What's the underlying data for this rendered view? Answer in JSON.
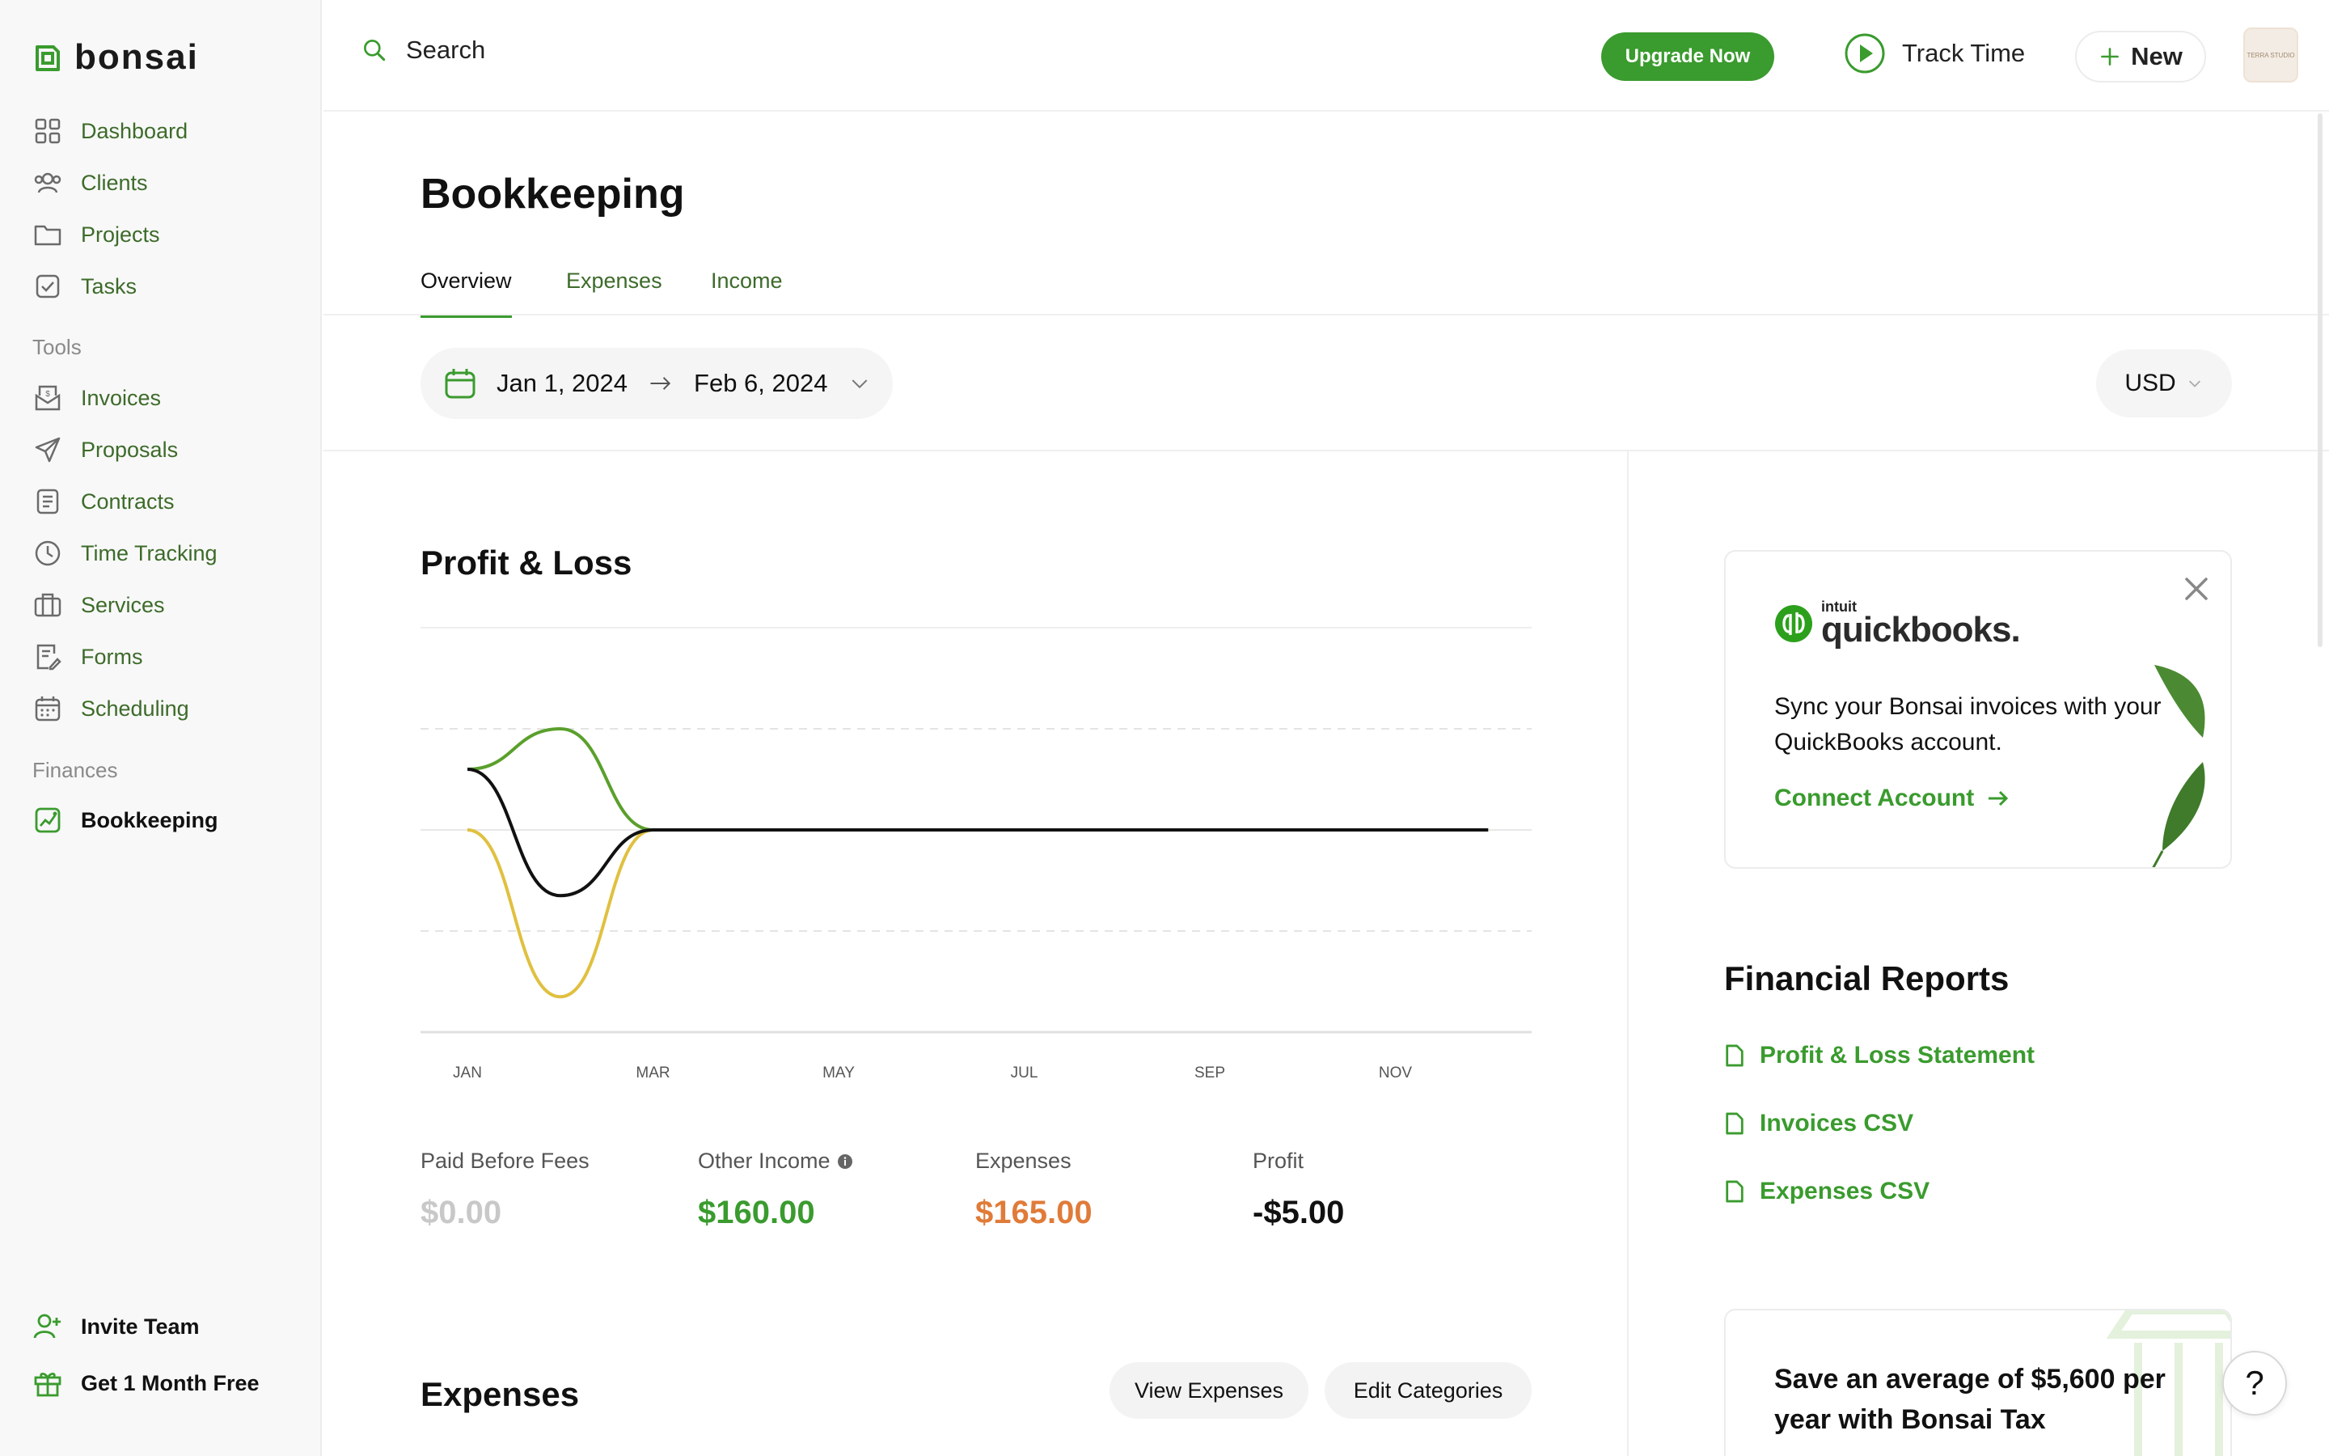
{
  "brand": {
    "name": "bonsai",
    "accent": "#3a9b2e"
  },
  "sidebar": {
    "main_items": [
      {
        "label": "Dashboard",
        "icon": "grid-icon"
      },
      {
        "label": "Clients",
        "icon": "users-icon"
      },
      {
        "label": "Projects",
        "icon": "folder-icon"
      },
      {
        "label": "Tasks",
        "icon": "checkbox-icon"
      }
    ],
    "tools_heading": "Tools",
    "tools_items": [
      {
        "label": "Invoices",
        "icon": "invoice-icon"
      },
      {
        "label": "Proposals",
        "icon": "send-icon"
      },
      {
        "label": "Contracts",
        "icon": "document-icon"
      },
      {
        "label": "Time Tracking",
        "icon": "clock-icon"
      },
      {
        "label": "Services",
        "icon": "briefcase-icon"
      },
      {
        "label": "Forms",
        "icon": "form-icon"
      },
      {
        "label": "Scheduling",
        "icon": "calendar-icon"
      }
    ],
    "finances_heading": "Finances",
    "finances_items": [
      {
        "label": "Bookkeeping",
        "icon": "chart-icon",
        "active": true
      }
    ],
    "bottom_items": [
      {
        "label": "Invite Team",
        "icon": "add-user-icon"
      },
      {
        "label": "Get 1 Month Free",
        "icon": "gift-icon"
      }
    ]
  },
  "topbar": {
    "search_label": "Search",
    "upgrade_label": "Upgrade Now",
    "track_time_label": "Track Time",
    "new_label": "New",
    "avatar_text": "TERRA STUDIO"
  },
  "page": {
    "title": "Bookkeeping",
    "tabs": [
      {
        "label": "Overview",
        "active": true
      },
      {
        "label": "Expenses",
        "active": false
      },
      {
        "label": "Income",
        "active": false
      }
    ],
    "date_from": "Jan 1, 2024",
    "date_to": "Feb 6, 2024",
    "currency": "USD"
  },
  "profit_loss": {
    "title": "Profit & Loss",
    "stats": [
      {
        "label": "Paid Before Fees",
        "value": "$0.00",
        "color": "#c8c8c8",
        "info": false
      },
      {
        "label": "Other Income",
        "value": "$160.00",
        "color": "#3a9b2e",
        "info": true
      },
      {
        "label": "Expenses",
        "value": "$165.00",
        "color": "#e07b39",
        "info": false
      },
      {
        "label": "Profit",
        "value": "-$5.00",
        "color": "#111111",
        "info": false
      }
    ]
  },
  "chart_data": {
    "type": "line",
    "x": [
      "JAN",
      "FEB",
      "MAR",
      "APR",
      "MAY",
      "JUN",
      "JUL",
      "AUG",
      "SEP",
      "OCT",
      "NOV",
      "DEC"
    ],
    "tick_labels": [
      "JAN",
      "MAR",
      "MAY",
      "JUL",
      "SEP",
      "NOV"
    ],
    "series": [
      {
        "values": [
          60,
          100,
          0,
          0,
          0,
          0,
          0,
          0,
          0,
          0,
          0,
          0
        ],
        "color": "#5aa02c"
      },
      {
        "values": [
          0,
          -165,
          0,
          0,
          0,
          0,
          0,
          0,
          0,
          0,
          0,
          0
        ],
        "color": "#e0c040"
      },
      {
        "values": [
          60,
          -65,
          0,
          0,
          0,
          0,
          0,
          0,
          0,
          0,
          0,
          0
        ],
        "color": "#111111"
      }
    ],
    "ylim": [
      -200,
      200
    ],
    "grid": true,
    "legend": "none"
  },
  "expenses_section": {
    "title": "Expenses",
    "view_label": "View Expenses",
    "edit_label": "Edit Categories"
  },
  "quickbooks": {
    "intuit_label": "intuit",
    "name": "quickbooks.",
    "text": "Sync your Bonsai invoices with your QuickBooks account.",
    "link_label": "Connect Account"
  },
  "financial_reports": {
    "title": "Financial Reports",
    "items": [
      "Profit & Loss Statement",
      "Invoices CSV",
      "Expenses CSV"
    ]
  },
  "tax_promo": {
    "text": "Save an average of $5,600 per year with Bonsai Tax"
  },
  "help_label": "?"
}
